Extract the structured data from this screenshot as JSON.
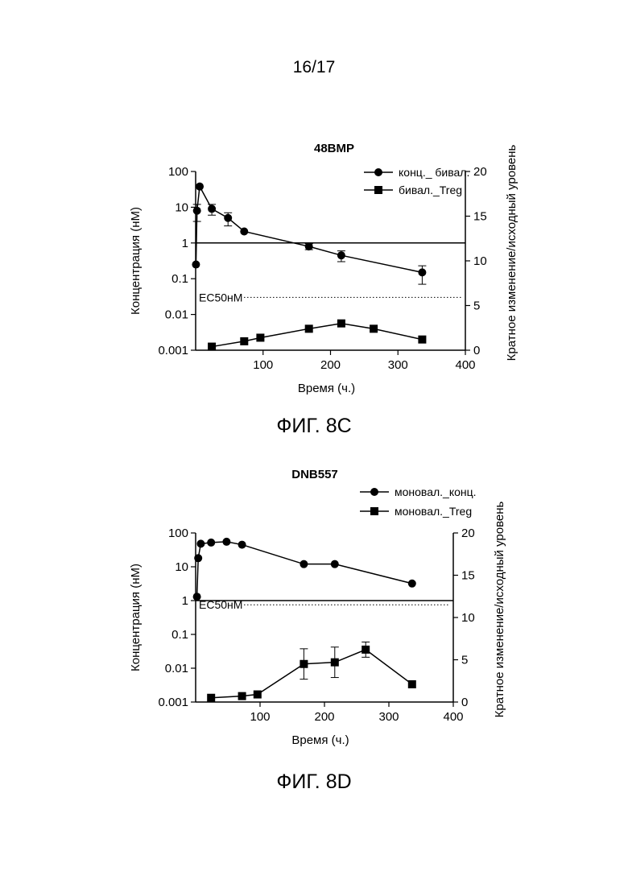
{
  "page_number": "16/17",
  "figures": [
    {
      "caption": "ФИГ. 8C",
      "chart_data": {
        "type": "line",
        "title": "48BMP",
        "xlabel": "Время (ч.)",
        "ylabel_left": "Концентрация (нМ)",
        "ylabel_right": "Кратное изменение/исходный уровень",
        "x_ticks": [
          100,
          200,
          300,
          400
        ],
        "x_range": [
          0,
          400
        ],
        "y_left_scale": "log",
        "y_left_range": [
          0.001,
          100
        ],
        "y_left_ticks": [
          "100",
          "10",
          "1",
          "0.1",
          "0.01",
          "0.001"
        ],
        "y_right_range": [
          0,
          20
        ],
        "y_right_ticks": [
          "20",
          "15",
          "10",
          "5",
          "0"
        ],
        "reference_line": {
          "value": 1,
          "style": "solid"
        },
        "ec50_line": {
          "label": "EC50нМ",
          "value": 0.03,
          "style": "dotted"
        },
        "legend_position": "top-right",
        "series": [
          {
            "name": "конц._ бивал.",
            "marker": "circle",
            "axis": "left",
            "x": [
              0.5,
              2,
              6,
              24,
              48,
              72,
              168,
              216,
              336
            ],
            "y": [
              0.25,
              8,
              38,
              9,
              5,
              2.1,
              0.8,
              0.45,
              0.15
            ],
            "err": [
              0,
              4,
              0,
              3,
              2,
              0,
              0.15,
              0.15,
              0.08
            ]
          },
          {
            "name": "бивал._Treg",
            "marker": "square",
            "axis": "right",
            "x": [
              24,
              72,
              96,
              168,
              216,
              264,
              336
            ],
            "y": [
              0.4,
              1.0,
              1.4,
              2.4,
              3.0,
              2.4,
              1.2
            ],
            "err": [
              0,
              0,
              0,
              0,
              0,
              0,
              0
            ]
          }
        ]
      }
    },
    {
      "caption": "ФИГ. 8D",
      "chart_data": {
        "type": "line",
        "title": "DNB557",
        "xlabel": "Время (ч.)",
        "ylabel_left": "Концентрация (нМ)",
        "ylabel_right": "Кратное изменение/исходный уровень",
        "x_ticks": [
          100,
          200,
          300,
          400
        ],
        "x_range": [
          0,
          400
        ],
        "y_left_scale": "log",
        "y_left_range": [
          0.001,
          100
        ],
        "y_left_ticks": [
          "100",
          "10",
          "1",
          "0.1",
          "0.01",
          "0.001"
        ],
        "y_right_range": [
          0,
          20
        ],
        "y_right_ticks": [
          "20",
          "15",
          "10",
          "5",
          "0"
        ],
        "reference_line": {
          "value": 1,
          "style": "solid"
        },
        "ec50_line": {
          "label": "EC50нМ",
          "value": 0.75,
          "style": "dotted"
        },
        "legend_position": "top-right",
        "series": [
          {
            "name": "моновал._конц.",
            "marker": "circle",
            "axis": "left",
            "x": [
              2,
              4,
              8,
              24,
              48,
              72,
              168,
              216,
              336
            ],
            "y": [
              1.3,
              18,
              48,
              52,
              55,
              45,
              12,
              12,
              3.2
            ],
            "err": [
              0,
              0,
              0,
              0,
              0,
              0,
              0,
              0,
              0
            ]
          },
          {
            "name": "моновал._Treg",
            "marker": "square",
            "axis": "right",
            "x": [
              24,
              72,
              96,
              168,
              216,
              264,
              336
            ],
            "y": [
              0.5,
              0.7,
              0.9,
              4.5,
              4.7,
              6.2,
              2.1
            ],
            "err": [
              0,
              0,
              0,
              1.8,
              1.8,
              0.9,
              0
            ]
          }
        ]
      }
    }
  ]
}
